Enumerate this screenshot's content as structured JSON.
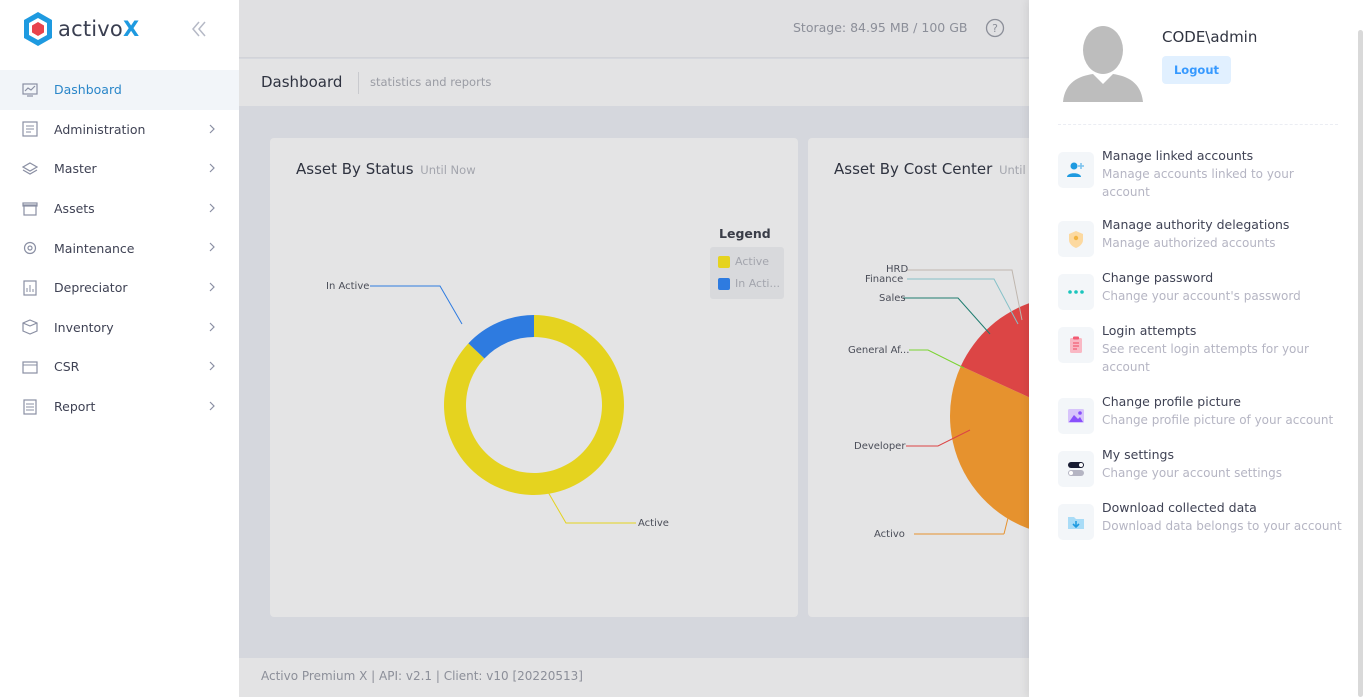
{
  "brand": {
    "name_prefix": "activo",
    "name_suffix": "X"
  },
  "sidebar": {
    "items": [
      {
        "label": "Dashboard"
      },
      {
        "label": "Administration"
      },
      {
        "label": "Master"
      },
      {
        "label": "Assets"
      },
      {
        "label": "Maintenance"
      },
      {
        "label": "Depreciator"
      },
      {
        "label": "Inventory"
      },
      {
        "label": "CSR"
      },
      {
        "label": "Report"
      }
    ]
  },
  "topbar": {
    "storage": "Storage: 84.95 MB / 100 GB"
  },
  "subheader": {
    "title": "Dashboard",
    "subtitle": "statistics and reports"
  },
  "cards": {
    "status": {
      "title": "Asset By Status",
      "subtitle": "Until Now"
    },
    "cost_center": {
      "title": "Asset By Cost Center",
      "subtitle": "Until N"
    }
  },
  "legend": {
    "title": "Legend",
    "items": [
      "Active",
      "In Acti..."
    ]
  },
  "chart_data": [
    {
      "type": "pie",
      "title": "Asset By Status",
      "subtitle": "Until Now",
      "donut": true,
      "legend_placement": "right",
      "slices": [
        {
          "label": "Active",
          "value": 87,
          "color": "#e5d31f"
        },
        {
          "label": "In Active",
          "value": 13,
          "color": "#2e7be0"
        }
      ]
    },
    {
      "type": "pie",
      "title": "Asset By Cost Center",
      "subtitle": "Until N",
      "partially_hidden": true,
      "slices": [
        {
          "label": "Activo",
          "value": 15,
          "color": "#e6922e"
        },
        {
          "label": "Developer",
          "value": 12,
          "color": "#dc4545"
        },
        {
          "label": "General Af...",
          "value": 8,
          "color": "#7ad332"
        },
        {
          "label": "Sales",
          "value": 5,
          "color": "#1f7d70"
        },
        {
          "label": "Finance",
          "value": 3,
          "color": "#86c1c8"
        },
        {
          "label": "HRD",
          "value": 2,
          "color": "#bfb6ae"
        }
      ]
    }
  ],
  "footer": {
    "text": "Activo Premium X | API: v2.1 | Client: v10 [20220513]"
  },
  "panel": {
    "user": "CODE\\admin",
    "logout_label": "Logout",
    "items": [
      {
        "title": "Manage linked accounts",
        "desc": "Manage accounts linked to your account",
        "icon": "add-user-icon"
      },
      {
        "title": "Manage authority delegations",
        "desc": "Manage authorized accounts",
        "icon": "shield-user-icon"
      },
      {
        "title": "Change password",
        "desc": "Change your account's password",
        "icon": "dots-icon"
      },
      {
        "title": "Login attempts",
        "desc": "See recent login attempts for your account",
        "icon": "clipboard-icon"
      },
      {
        "title": "Change profile picture",
        "desc": "Change profile picture of your account",
        "icon": "image-icon"
      },
      {
        "title": "My settings",
        "desc": "Change your account settings",
        "icon": "toggle-icon"
      },
      {
        "title": "Download collected data",
        "desc": "Download data belongs to your account",
        "icon": "folder-download-icon"
      }
    ]
  },
  "colors": {
    "accent": "#3699ff",
    "active_menu": "#2a86c9",
    "brand_blue": "#1e9ae0",
    "brand_red": "#e8434c"
  }
}
